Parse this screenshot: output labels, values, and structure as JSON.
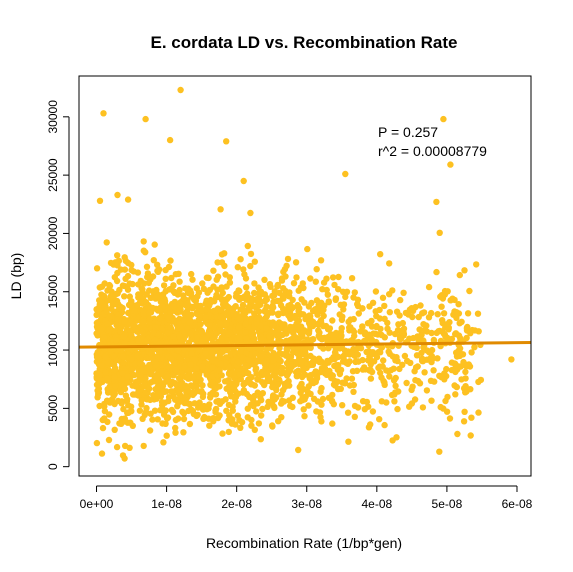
{
  "chart_data": {
    "type": "scatter",
    "title": "E. cordata LD vs. Recombination Rate",
    "xlabel": "Recombination Rate (1/bp*gen)",
    "ylabel": "LD (bp)",
    "xlim": [
      -2.5e-09,
      6.2e-08
    ],
    "ylim": [
      -800,
      33500
    ],
    "x_ticks": [
      0,
      1e-08,
      2e-08,
      3e-08,
      4e-08,
      5e-08,
      6e-08
    ],
    "x_tick_labels": [
      "0e+00",
      "1e-08",
      "2e-08",
      "3e-08",
      "4e-08",
      "5e-08",
      "6e-08"
    ],
    "y_ticks": [
      0,
      5000,
      10000,
      15000,
      20000,
      25000,
      30000
    ],
    "y_tick_labels": [
      "0",
      "5000",
      "10000",
      "15000",
      "20000",
      "25000",
      "30000"
    ],
    "point_color": "#FDC121",
    "fit_line_color": "#E08A00",
    "fit_line": {
      "x": [
        -2.5e-09,
        6.2e-08
      ],
      "y": [
        10250,
        10650
      ]
    },
    "annotations": [
      "P = 0.257",
      "r^2 = 0.00008779"
    ],
    "grid": false,
    "legend": "none",
    "outliers": {
      "x": [
        1e-09,
        7e-09,
        1.2e-08,
        1.05e-08,
        4.95e-08,
        1.85e-08,
        5.05e-08,
        3.55e-08,
        4.85e-08,
        5e-10,
        3e-09,
        4.5e-09,
        2.1e-08,
        5.35e-08,
        5.92e-08,
        5.15e-08,
        4e-09
      ],
      "y": [
        30300,
        29800,
        32300,
        28000,
        29800,
        27900,
        25900,
        25100,
        22700,
        22800,
        23300,
        22900,
        24500,
        4200,
        9200,
        2800,
        700
      ]
    },
    "density": {
      "x_bins": [
        0,
        2.5e-09,
        5e-09,
        7.5e-09,
        1e-08,
        1.25e-08,
        1.5e-08,
        1.75e-08,
        2e-08,
        2.25e-08,
        2.5e-08,
        2.75e-08,
        3e-08,
        3.25e-08,
        3.5e-08,
        3.75e-08,
        4e-08,
        4.25e-08,
        4.5e-08,
        4.75e-08,
        5e-08,
        5.25e-08
      ],
      "counts": [
        260,
        260,
        250,
        240,
        230,
        220,
        210,
        200,
        190,
        170,
        150,
        130,
        100,
        80,
        70,
        55,
        50,
        45,
        45,
        50,
        55,
        30
      ]
    }
  }
}
